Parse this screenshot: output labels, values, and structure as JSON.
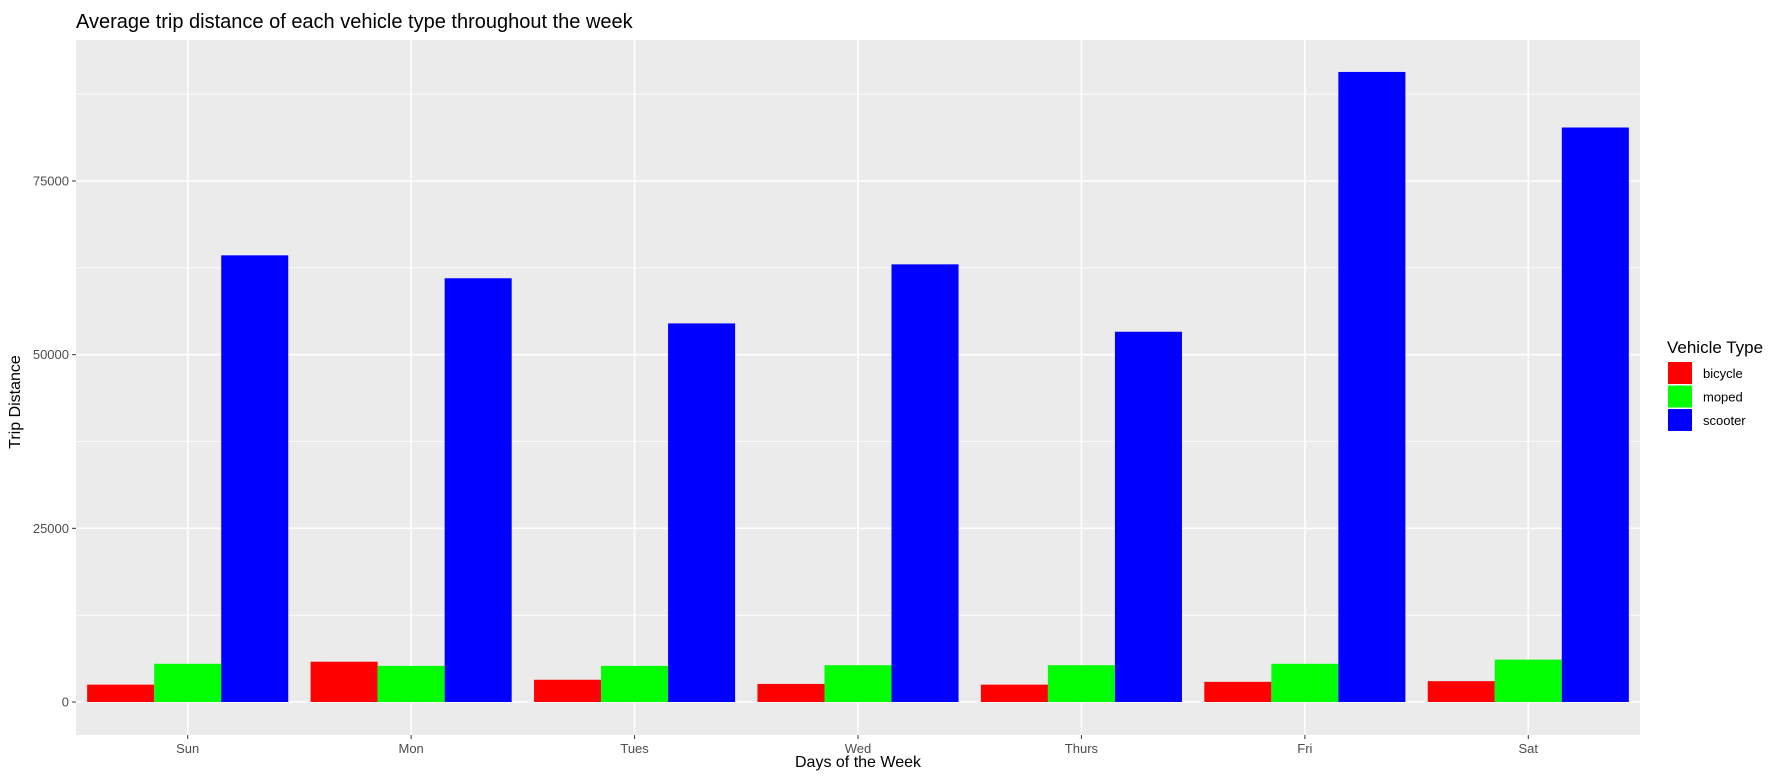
{
  "chart_data": {
    "type": "bar",
    "title": "Average trip distance of each vehicle type throughout the week",
    "xlabel": "Days of the Week",
    "ylabel": "Trip Distance",
    "categories": [
      "Sun",
      "Mon",
      "Tues",
      "Wed",
      "Thurs",
      "Fri",
      "Sat"
    ],
    "series": [
      {
        "name": "bicycle",
        "color": "#ff0000",
        "values": [
          2500,
          5800,
          3200,
          2600,
          2500,
          2900,
          3000
        ]
      },
      {
        "name": "moped",
        "color": "#00ff00",
        "values": [
          5500,
          5200,
          5200,
          5300,
          5300,
          5500,
          6100
        ]
      },
      {
        "name": "scooter",
        "color": "#0000ff",
        "values": [
          64300,
          61000,
          54500,
          63000,
          53300,
          90700,
          82700
        ]
      }
    ],
    "ylim": [
      -4000,
      95000
    ],
    "yticks": [
      0,
      25000,
      50000,
      75000
    ],
    "ytick_labels": [
      "0",
      "25000",
      "50000",
      "75000"
    ],
    "grid": true,
    "legend": {
      "title": "Vehicle Type",
      "position": "right"
    },
    "panel_background": "#ebebeb",
    "grid_color": "#ffffff"
  }
}
